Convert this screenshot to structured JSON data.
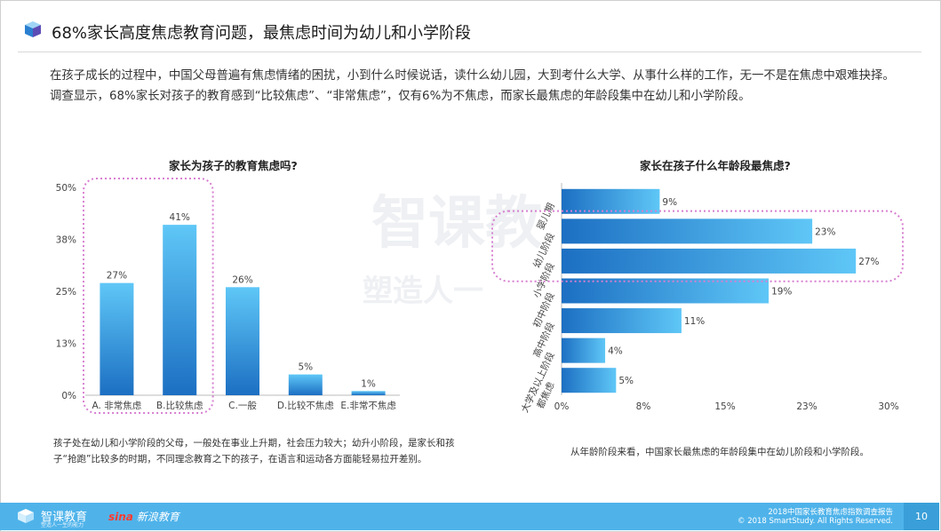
{
  "header": {
    "title": "68%家长高度焦虑教育问题，最焦虑时间为幼儿和小学阶段"
  },
  "intro": "在孩子成长的过程中，中国父母普遍有焦虑情绪的困扰，小到什么时候说话，读什么幼儿园，大到考什么大学、从事什么样的工作，无一不是在焦虑中艰难抉择。调查显示，68%家长对孩子的教育感到“比较焦虑”、“非常焦虑”，仅有6%为不焦虑，而家长最焦虑的年龄段集中在幼儿和小学阶段。",
  "watermark": {
    "line1": "智课教",
    "line2": "塑造人一"
  },
  "notes": {
    "left": "孩子处在幼儿和小学阶段的父母，一般处在事业上升期，社会压力较大；幼升小阶段，是家长和孩子“抢跑”比较多的时期，不同理念教育之下的孩子，在语言和运动各方面能轻易拉开差别。",
    "right": "从年龄阶段来看，中国家长最焦虑的年龄段集中在幼儿阶段和小学阶段。"
  },
  "footer": {
    "brand": "智课教育",
    "brand_sub": "塑造人一生的能力",
    "partner": "新浪教育",
    "partner_mark": "sina",
    "report": "2018中国家长教育焦虑指数调查报告",
    "copyright": "© 2018 SmartStudy. All Rights Reserved.",
    "page": "10"
  },
  "colors": {
    "bar_top": "#5fc7f7",
    "bar_bottom": "#1c6fc2",
    "highlight": "#d77fd1",
    "footer": "#4fb3ea"
  },
  "chart_data": [
    {
      "type": "bar",
      "title": "家长为孩子的教育焦虑吗?",
      "categories": [
        "A. 非常焦虑",
        "B.比较焦虑",
        "C.一般",
        "D.比较不焦虑",
        "E.非常不焦虑"
      ],
      "values": [
        27,
        41,
        26,
        5,
        1
      ],
      "value_labels": [
        "27%",
        "41%",
        "26%",
        "5%",
        "1%"
      ],
      "yticks": [
        "50%",
        "38%",
        "25%",
        "13%",
        "0%"
      ],
      "ylim": [
        0,
        50
      ],
      "highlight": [
        "A. 非常焦虑",
        "B.比较焦虑"
      ],
      "grid": false
    },
    {
      "type": "bar",
      "orientation": "horizontal",
      "title": "家长在孩子什么年龄段最焦虑?",
      "categories": [
        "婴儿期",
        "幼儿阶段",
        "小学阶段",
        "初中阶段",
        "高中阶段",
        "大学及以上阶段",
        "都焦虑"
      ],
      "values": [
        9,
        23,
        27,
        19,
        11,
        4,
        5
      ],
      "value_labels": [
        "9%",
        "23%",
        "27%",
        "19%",
        "11%",
        "4%",
        "5%"
      ],
      "xticks": [
        "0%",
        "8%",
        "15%",
        "23%",
        "30%"
      ],
      "xlim": [
        0,
        30
      ],
      "highlight": [
        "幼儿阶段",
        "小学阶段"
      ],
      "grid": false
    }
  ]
}
